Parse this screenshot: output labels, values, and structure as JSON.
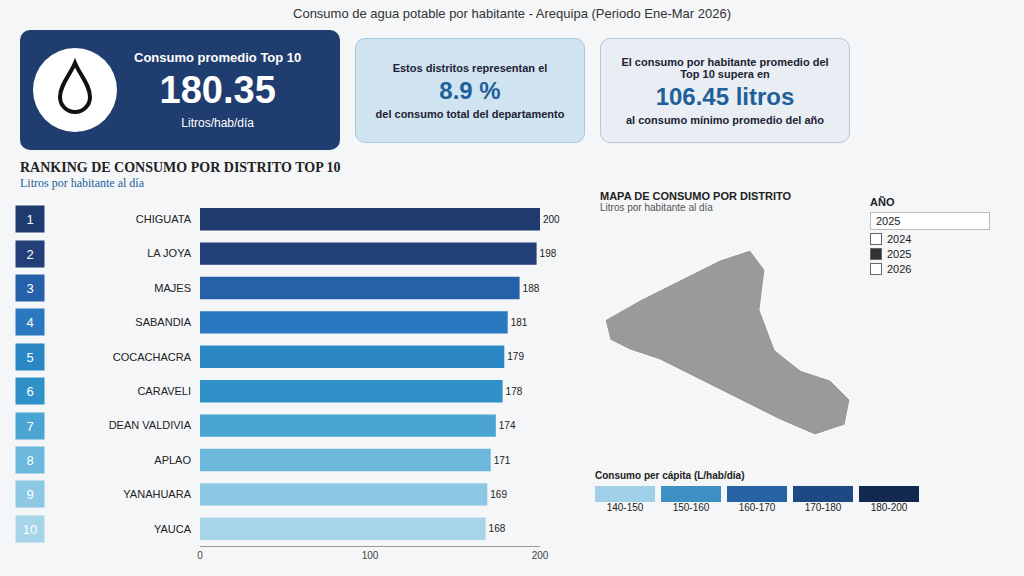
{
  "header": {
    "title": "Consumo de agua potable por habitante - Arequipa (Periodo Ene-Mar 2026)"
  },
  "cards": [
    {
      "label": "Consumo promedio Top 10",
      "value": "180.35",
      "unit": "Litros/hab/día"
    },
    {
      "label": "Estos distritos representan el",
      "value": "8.9 %",
      "unit": "del consumo total del departamento"
    },
    {
      "label": "El consumo por habitante promedio del Top 10 supera en",
      "value": "106.45 litros",
      "unit": "al consumo mínimo promedio del año"
    }
  ],
  "chart_data": {
    "type": "bar",
    "orientation": "horizontal",
    "title": "RANKING DE CONSUMO POR DISTRITO TOP 10",
    "subtitle": "Litros por habitante al día",
    "ranks": [
      1,
      2,
      3,
      4,
      5,
      6,
      7,
      8,
      9,
      10
    ],
    "categories": [
      "CHIGUATA",
      "LA JOYA",
      "MAJES",
      "SABANDIA",
      "COCACHACRA",
      "CARAVELI",
      "DEAN VALDIVIA",
      "APLAO",
      "YANAHUARA",
      "YAUCA"
    ],
    "values": [
      200,
      198,
      188,
      181,
      179,
      178,
      174,
      171,
      169,
      168
    ],
    "colors": [
      "#1f3a6e",
      "#233f78",
      "#2560a8",
      "#2a78bf",
      "#2b86c4",
      "#2f91c8",
      "#4aa5d2",
      "#6bb8dc",
      "#8cc8e4",
      "#a6d5ea"
    ],
    "xlim": [
      0,
      200
    ],
    "xticks": [
      0,
      100,
      200
    ],
    "data_labels": true,
    "grid": false
  },
  "map": {
    "title": "MAPA DE CONSUMO POR DISTRITO",
    "subtitle": "Litros por habitante al día",
    "filter": {
      "label": "AÑO",
      "selected": "2025",
      "options": [
        "2024",
        "2025",
        "2026"
      ]
    },
    "legend": {
      "title": "Consumo per cápita (L/hab/día)",
      "classes": [
        {
          "label": "140-150",
          "color": "#9fd0e8"
        },
        {
          "label": "150-160",
          "color": "#3d8fc4"
        },
        {
          "label": "160-170",
          "color": "#2563a3"
        },
        {
          "label": "170-180",
          "color": "#1d4a85"
        },
        {
          "label": "180-200",
          "color": "#13294f"
        }
      ]
    }
  }
}
